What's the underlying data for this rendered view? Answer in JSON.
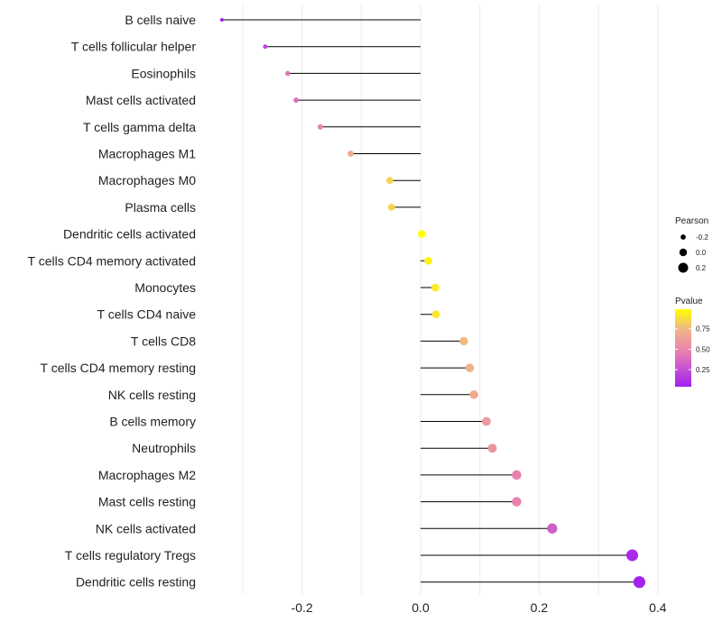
{
  "chart_data": {
    "type": "lollipop",
    "title": "",
    "xlabel": "",
    "ylabel": "",
    "xlim": [
      -0.335,
      0.4
    ],
    "x_ticks": [
      -0.2,
      0.0,
      0.2,
      0.4
    ],
    "x_tick_labels": [
      "-0.2",
      "0.0",
      "0.2",
      "0.4"
    ],
    "grid": true,
    "categories": [
      "B cells naive",
      "T cells follicular helper",
      "Eosinophils",
      "Mast cells activated",
      "T cells gamma delta",
      "Macrophages M1",
      "Macrophages M0",
      "Plasma cells",
      "Dendritic cells activated",
      "T cells CD4 memory activated",
      "Monocytes",
      "T cells CD4 naive",
      "T cells CD8",
      "T cells CD4 memory resting",
      "NK cells resting",
      "B cells memory",
      "Neutrophils",
      "Macrophages M2",
      "Mast cells resting",
      "NK cells activated",
      "T cells regulatory  Tregs",
      "Dendritic cells resting"
    ],
    "pearson": [
      -0.335,
      -0.262,
      -0.224,
      -0.21,
      -0.169,
      -0.118,
      -0.052,
      -0.049,
      0.002,
      0.013,
      0.025,
      0.026,
      0.073,
      0.083,
      0.09,
      0.111,
      0.121,
      0.162,
      0.162,
      0.222,
      0.357,
      0.369
    ],
    "pvalue": [
      0.04,
      0.22,
      0.42,
      0.38,
      0.52,
      0.68,
      0.84,
      0.85,
      0.99,
      0.95,
      0.92,
      0.92,
      0.76,
      0.72,
      0.68,
      0.6,
      0.58,
      0.48,
      0.48,
      0.32,
      0.08,
      0.06
    ],
    "legend": {
      "position": "right",
      "size_title": "Pearson",
      "size_items": [
        {
          "label": "-0.2",
          "value": -0.2
        },
        {
          "label": "0.0",
          "value": 0.0
        },
        {
          "label": "0.2",
          "value": 0.2
        }
      ],
      "color_title": "Pvalue",
      "color_ticks": [
        {
          "label": "0.75",
          "value": 0.75
        },
        {
          "label": "0.50",
          "value": 0.5
        },
        {
          "label": "0.25",
          "value": 0.25
        }
      ],
      "color_range": [
        0.04,
        0.99
      ]
    },
    "colors": {
      "low": "#a020f0",
      "mid": "#e87fb0",
      "high_mid": "#f0b884",
      "high": "#ffff00",
      "stem": "#000000",
      "grid": "#ebebeb"
    }
  }
}
